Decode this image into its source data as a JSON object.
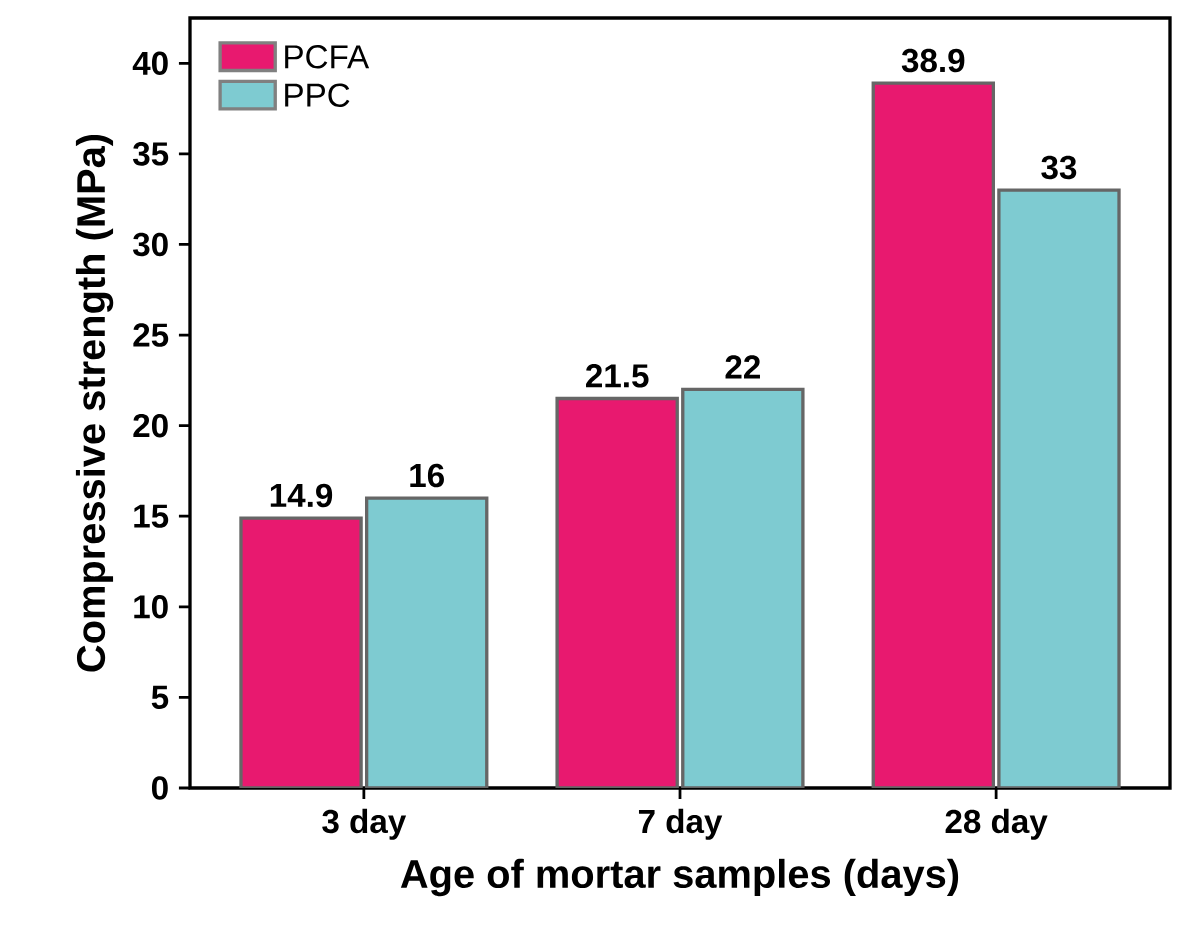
{
  "chart_data": {
    "type": "bar",
    "xlabel": "Age of mortar samples (days)",
    "ylabel": "Compressive strength (MPa)",
    "categories": [
      "3 day",
      "7 day",
      "28 day"
    ],
    "series": [
      {
        "name": "PCFA",
        "color": "#e8196f",
        "values": [
          14.9,
          21.5,
          38.9
        ]
      },
      {
        "name": "PPC",
        "color": "#7ecbd1",
        "values": [
          16,
          22,
          33
        ]
      }
    ],
    "ylim": [
      0,
      42.5
    ],
    "yticks": [
      0,
      5,
      10,
      15,
      20,
      25,
      30,
      35,
      40
    ],
    "data_labels": true,
    "legend": "top left",
    "grid": false
  }
}
